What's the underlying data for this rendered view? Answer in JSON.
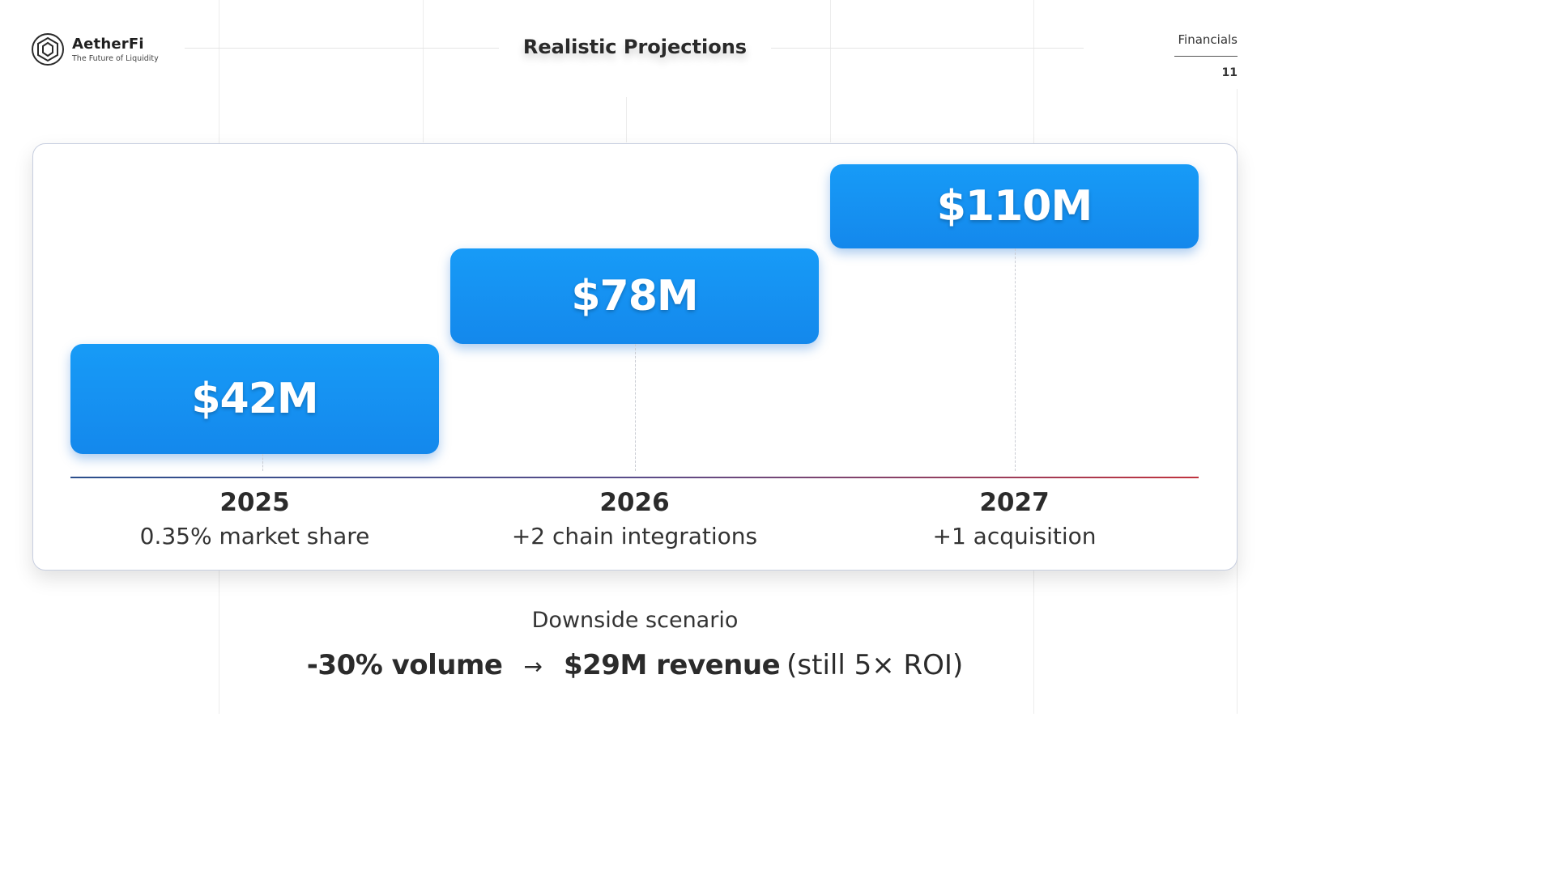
{
  "brand": {
    "name": "AetherFi",
    "tagline": "The Future of Liquidity",
    "logo_icon": "hexagon-logo-icon"
  },
  "header": {
    "title": "Realistic Projections",
    "section": "Financials",
    "page_number": "11"
  },
  "chart_data": {
    "type": "bar",
    "categories": [
      "2025",
      "2026",
      "2027"
    ],
    "values": [
      42,
      78,
      110
    ],
    "value_labels": [
      "$42M",
      "$78M",
      "$110M"
    ],
    "descriptions": [
      "0.35% market share",
      "+2 chain integrations",
      "+1 acquisition"
    ],
    "unit": "$M",
    "title": "",
    "xlabel": "",
    "ylabel": "",
    "grid": false,
    "bar_color": "#1488ec"
  },
  "downside": {
    "label": "Downside scenario",
    "volume": "-30% volume",
    "arrow": "→",
    "revenue": "$29M revenue",
    "note": "(still 5× ROI)"
  }
}
